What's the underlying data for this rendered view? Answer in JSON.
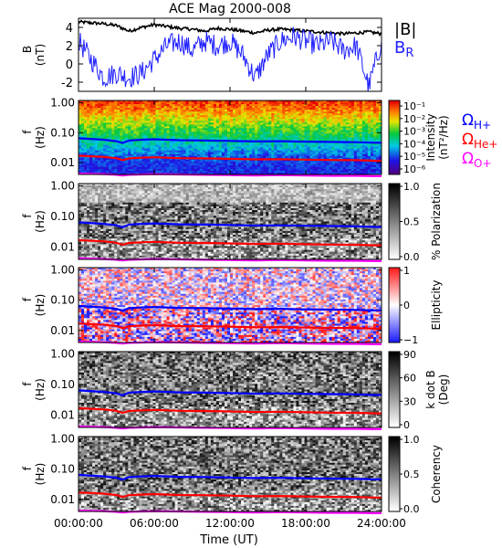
{
  "figure": {
    "title": "ACE Mag 2000-008",
    "xlabel": "Time (UT)",
    "x_ticks": [
      "00:00:00",
      "06:00:00",
      "12:00:00",
      "18:00:00",
      "24:00:00"
    ],
    "x_tick_hours": [
      0,
      6,
      12,
      18,
      24
    ]
  },
  "colors": {
    "B_total": "#000000",
    "B_R": "#2020ff",
    "omega_H": "#0000ff",
    "omega_He": "#ff0000",
    "omega_O": "#ff00ff"
  },
  "chart_data": [
    {
      "type": "line",
      "panel": "field",
      "ylabel_top": "B",
      "ylabel_bottom": "(nT)",
      "ylim": [
        -3,
        5
      ],
      "y_ticks": [
        "4",
        "2",
        "0",
        "-2"
      ],
      "y_tick_values": [
        4,
        2,
        0,
        -2
      ],
      "legend": [
        {
          "label": "|B|",
          "color_key": "B_total"
        },
        {
          "label": "B",
          "sub": "R",
          "color_key": "B_R"
        }
      ],
      "series": [
        {
          "name": "|B|",
          "color_key": "B_total",
          "x": [
            0,
            1,
            2,
            3,
            4,
            5,
            6,
            7,
            8,
            9,
            10,
            11,
            12,
            13,
            14,
            15,
            16,
            17,
            18,
            19,
            20,
            21,
            22,
            23,
            24
          ],
          "values": [
            4.6,
            4.5,
            4.4,
            4.2,
            3.6,
            4.0,
            4.3,
            4.1,
            3.9,
            3.8,
            3.6,
            3.9,
            3.8,
            3.6,
            3.4,
            3.7,
            3.8,
            3.7,
            3.6,
            3.5,
            3.4,
            3.3,
            3.4,
            3.5,
            3.3
          ]
        },
        {
          "name": "B_R",
          "color_key": "B_R",
          "x": [
            0,
            1,
            2,
            3,
            4,
            5,
            6,
            7,
            8,
            9,
            10,
            11,
            12,
            13,
            14,
            15,
            16,
            17,
            18,
            19,
            20,
            21,
            22,
            23,
            24
          ],
          "values": [
            2.5,
            0.5,
            -1.5,
            -1.0,
            -1.5,
            -1.0,
            0.5,
            2.0,
            2.5,
            1.5,
            2.5,
            2.0,
            2.5,
            1.0,
            -1.5,
            1.0,
            2.5,
            3.0,
            2.5,
            2.0,
            2.5,
            1.5,
            2.0,
            -2.5,
            2.5
          ]
        }
      ]
    },
    {
      "type": "heatmap",
      "panel": "intensity",
      "colormap": "rainbow",
      "ylabel_top": "f",
      "ylabel_bottom": "(Hz)",
      "y_ticks": [
        "1.00",
        "0.10",
        "0.01"
      ],
      "y_tick_values": [
        1.0,
        0.1,
        0.01
      ],
      "ylim": [
        0.004,
        1.2
      ],
      "colorbar_label_1": "Intensity",
      "colorbar_label_2": "(nT²/Hz)",
      "colorbar_ticks": [
        "10⁻¹",
        "10⁻²",
        "10⁻³",
        "10⁻⁴",
        "10⁻⁵",
        "10⁻⁶"
      ],
      "colorbar_log_range": [
        -6.5,
        -0.5
      ],
      "legend": [
        {
          "label": "Ω",
          "sub": "H+",
          "color_key": "omega_H"
        },
        {
          "label": "Ω",
          "sub": "He+",
          "color_key": "omega_He"
        },
        {
          "label": "Ω",
          "sub": "O+",
          "color_key": "omega_O"
        }
      ]
    },
    {
      "type": "heatmap",
      "panel": "polarization",
      "colormap": "gray_reversed",
      "ylabel_top": "f",
      "ylabel_bottom": "(Hz)",
      "y_ticks": [
        "1.00",
        "0.10",
        "0.01"
      ],
      "y_tick_values": [
        1.0,
        0.1,
        0.01
      ],
      "ylim": [
        0.004,
        1.2
      ],
      "colorbar_label_1": "% Polarization",
      "colorbar_ticks": [
        "1.0",
        "0.5",
        "0.0"
      ],
      "colorbar_tick_values": [
        1.0,
        0.5,
        0.0
      ]
    },
    {
      "type": "heatmap",
      "panel": "ellipticity",
      "colormap": "blue_white_red",
      "ylabel_top": "f",
      "ylabel_bottom": "(Hz)",
      "y_ticks": [
        "1.00",
        "0.10",
        "0.01"
      ],
      "y_tick_values": [
        1.0,
        0.1,
        0.01
      ],
      "ylim": [
        0.004,
        1.2
      ],
      "colorbar_label_1": "Ellipticity",
      "colorbar_ticks": [
        "1",
        "0",
        "−1"
      ],
      "colorbar_tick_values": [
        1,
        0,
        -1
      ]
    },
    {
      "type": "heatmap",
      "panel": "kdotb",
      "colormap": "gray_reversed",
      "ylabel_top": "f",
      "ylabel_bottom": "(Hz)",
      "y_ticks": [
        "1.00",
        "0.10",
        "0.01"
      ],
      "y_tick_values": [
        1.0,
        0.1,
        0.01
      ],
      "ylim": [
        0.004,
        1.2
      ],
      "colorbar_label_1": "k dot B",
      "colorbar_label_2": "(Deg)",
      "colorbar_ticks": [
        "90",
        "60",
        "30",
        "0"
      ],
      "colorbar_tick_values": [
        90,
        60,
        30,
        0
      ]
    },
    {
      "type": "heatmap",
      "panel": "coherency",
      "colormap": "gray_reversed",
      "ylabel_top": "f",
      "ylabel_bottom": "(Hz)",
      "y_ticks": [
        "1.00",
        "0.10",
        "0.01"
      ],
      "y_tick_values": [
        1.0,
        0.1,
        0.01
      ],
      "ylim": [
        0.004,
        1.2
      ],
      "colorbar_label_1": "Coherency",
      "colorbar_ticks": [
        "1.0",
        "0.5",
        "0.0"
      ],
      "colorbar_tick_values": [
        1.0,
        0.5,
        0.0
      ]
    }
  ],
  "gyrofrequency_lines": {
    "x": [
      0,
      2,
      3,
      3.5,
      4,
      5,
      6,
      8,
      10,
      12,
      14,
      16,
      18,
      20,
      22,
      23.5,
      24
    ],
    "omega_H": [
      0.065,
      0.058,
      0.052,
      0.045,
      0.055,
      0.058,
      0.06,
      0.056,
      0.055,
      0.053,
      0.051,
      0.052,
      0.05,
      0.049,
      0.048,
      0.046,
      0.046
    ],
    "omega_He": [
      0.017,
      0.0155,
      0.014,
      0.012,
      0.0138,
      0.0145,
      0.015,
      0.014,
      0.0138,
      0.0133,
      0.0128,
      0.013,
      0.0125,
      0.0122,
      0.012,
      0.0115,
      0.0115
    ],
    "omega_O": [
      0.0043,
      0.0041,
      0.0039,
      0.0037,
      0.0039,
      0.004,
      0.0041,
      0.004,
      0.0039,
      0.0038,
      0.0037,
      0.0038,
      0.0037,
      0.0036,
      0.0036,
      0.0035,
      0.0035
    ]
  }
}
